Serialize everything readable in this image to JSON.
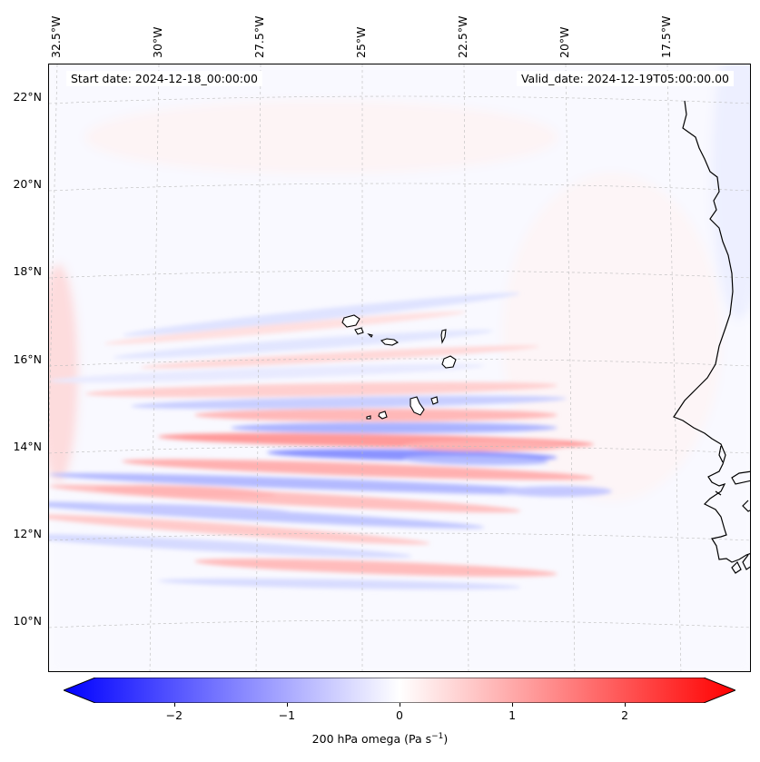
{
  "map": {
    "start_date_label": "Start date: 2024-12-18_00:00:00",
    "valid_date_label": "Valid_date: 2024-12-19T05:00:00.00",
    "longitude_labels": [
      "32.5°W",
      "30°W",
      "27.5°W",
      "25°W",
      "22.5°W",
      "20°W",
      "17.5°W"
    ],
    "latitude_labels": [
      "22°N",
      "20°N",
      "18°N",
      "16°N",
      "14°N",
      "12°N",
      "10°N"
    ],
    "variable": "200 hPa omega",
    "units": "Pa s",
    "units_exponent": "−1"
  },
  "colorbar": {
    "tick_labels": [
      "−2",
      "−1",
      "0",
      "1",
      "2"
    ],
    "range": [
      -2.7,
      2.7
    ],
    "colors": {
      "negative": "#0000ff",
      "zero": "#ffffff",
      "positive": "#ff0000"
    }
  }
}
